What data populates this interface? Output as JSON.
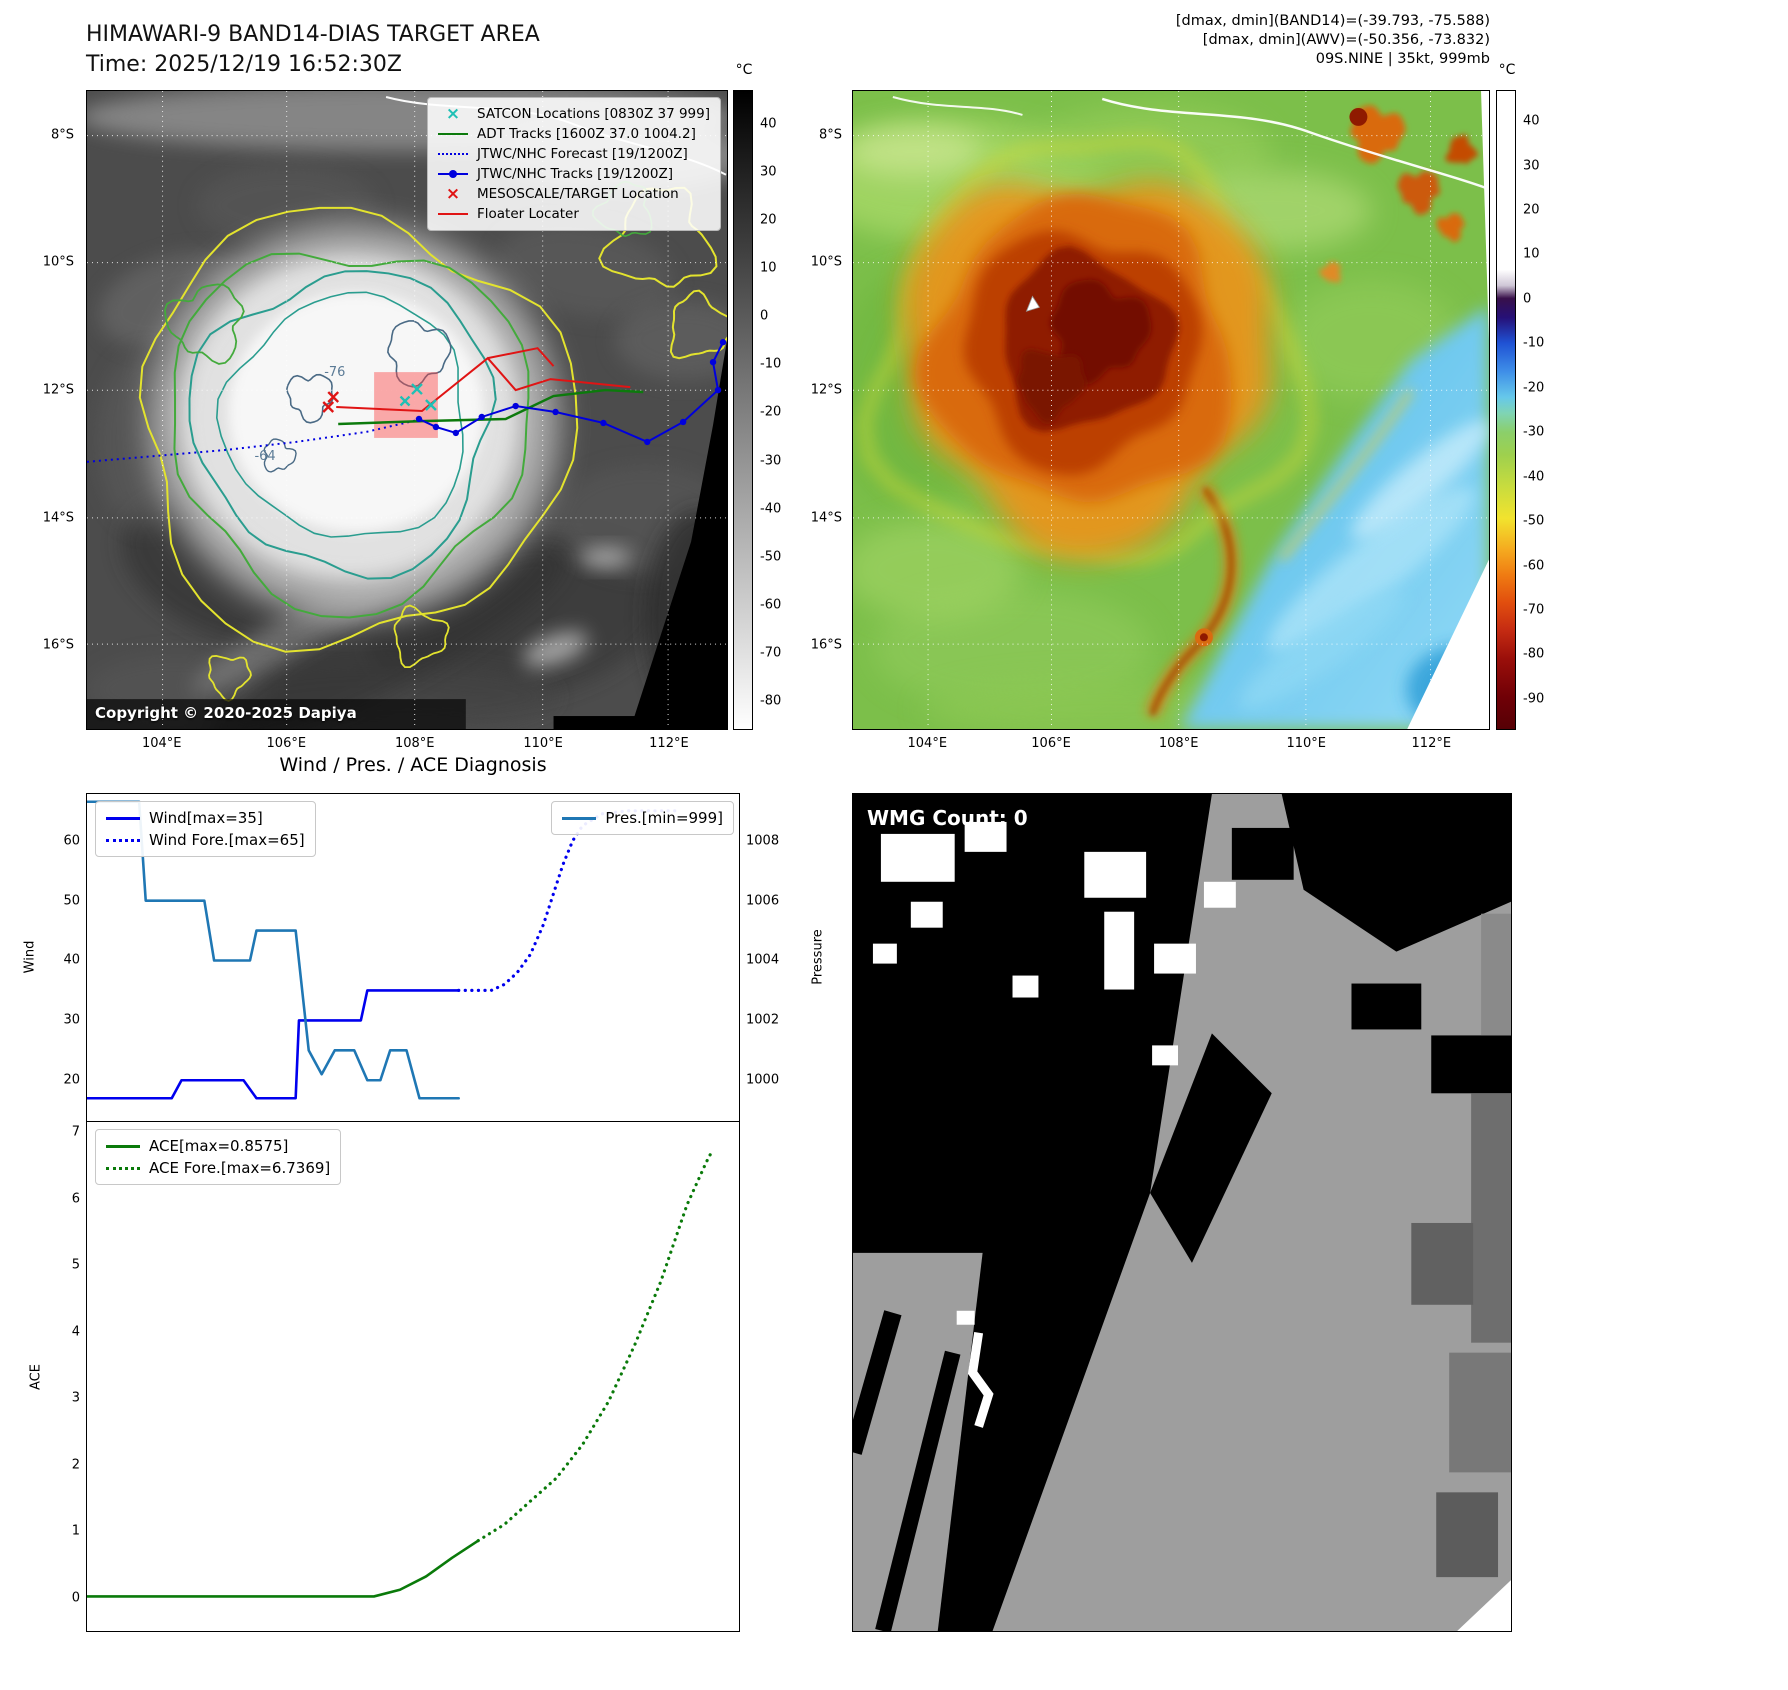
{
  "colors": {
    "wind_line": "#0000ee",
    "pressure_line": "#1f77b4",
    "ace_line": "#0a7a0a",
    "satcon_marker": "#1fc0b5",
    "adt_track": "#0c7a0c",
    "jtwc_track": "#0000dd",
    "jtwc_forecast": "#0000e0",
    "mesoscale_marker": "#e01414",
    "floater_track": "#e01414",
    "target_box": "rgba(250,70,70,0.45)",
    "contour_yellow": "#e3e32e",
    "contour_green": "#43aa3c",
    "contour_teal": "#2a9d8f",
    "contour_slate": "#4a6a85"
  },
  "band14": {
    "title": "HIMAWARI-9 BAND14-DIAS TARGET AREA",
    "time": "Time: 2025/12/19 16:52:30Z",
    "copyright": "Copyright © 2020-2025 Dapiya",
    "legend": [
      {
        "label": "SATCON Locations [0830Z 37 999]",
        "marker": "x",
        "color": "#1fc0b5"
      },
      {
        "label": "ADT Tracks [1600Z 37.0 1004.2]",
        "marker": "line",
        "color": "#0c7a0c"
      },
      {
        "label": "JTWC/NHC Forecast [19/1200Z]",
        "marker": "dotted",
        "color": "#0000e0"
      },
      {
        "label": "JTWC/NHC Tracks [19/1200Z]",
        "marker": "line-dot",
        "color": "#0000dd"
      },
      {
        "label": "MESOSCALE/TARGET Location",
        "marker": "x",
        "color": "#e01414"
      },
      {
        "label": "Floater Locater",
        "marker": "line",
        "color": "#e01414"
      }
    ],
    "contour_labels": [
      "-76",
      "-64"
    ],
    "x_ticks": [
      "104°E",
      "106°E",
      "108°E",
      "110°E",
      "112°E"
    ],
    "y_ticks": [
      "8°S",
      "10°S",
      "12°S",
      "14°S",
      "16°S"
    ],
    "colorbar": {
      "unit": "°C",
      "vmax": 47,
      "vmin": -86,
      "ticks": [
        40,
        30,
        20,
        10,
        0,
        -10,
        -20,
        -30,
        -40,
        -50,
        -60,
        -70,
        -80
      ]
    }
  },
  "awv": {
    "info_lines": [
      "[dmax, dmin](BAND14)=(-39.793, -75.588)",
      "[dmax, dmin](AWV)=(-50.356, -73.832)",
      "09S.NINE | 35kt, 999mb"
    ],
    "x_ticks": [
      "104°E",
      "106°E",
      "108°E",
      "110°E",
      "112°E"
    ],
    "y_ticks": [
      "8°S",
      "10°S",
      "12°S",
      "14°S",
      "16°S"
    ],
    "colorbar": {
      "unit": "°C",
      "vmax": 47,
      "vmin": -97,
      "ticks": [
        40,
        30,
        20,
        10,
        0,
        -10,
        -20,
        -30,
        -40,
        -50,
        -60,
        -70,
        -80,
        -90
      ]
    }
  },
  "diagnosis": {
    "title": "Wind / Pres. / ACE Diagnosis"
  },
  "wmg": {
    "count_label": "WMG Count: 0"
  },
  "chart_data": [
    {
      "type": "line",
      "title": "Wind / Pres. / ACE Diagnosis",
      "ylabel_left": "Wind",
      "ylabel_right": "Pressure",
      "xlim": [
        0,
        100
      ],
      "ylim_left": [
        13.2,
        67.8
      ],
      "ylim_right": [
        998.64,
        1009.56
      ],
      "yticks_left": [
        20,
        30,
        40,
        50,
        60
      ],
      "yticks_right": [
        1000,
        1002,
        1004,
        1006,
        1008
      ],
      "legend_left": [
        "Wind[max=35]",
        "Wind Fore.[max=65]"
      ],
      "legend_right": [
        "Pres.[min=999]"
      ],
      "grid": false,
      "series": [
        {
          "name": "Wind[max=35]",
          "axis": "left",
          "style": "solid",
          "color": "#0000ee",
          "x": [
            0,
            13,
            14.5,
            24,
            26,
            32,
            32.5,
            42,
            43,
            57
          ],
          "y": [
            17,
            17,
            20,
            20,
            17,
            17,
            30,
            30,
            35,
            35
          ]
        },
        {
          "name": "Wind Fore.[max=65]",
          "axis": "left",
          "style": "dotted",
          "color": "#0000ee",
          "x": [
            57,
            62,
            64,
            66,
            68,
            70,
            71.5,
            73,
            74.5,
            76,
            79,
            83,
            87,
            91
          ],
          "y": [
            35,
            35,
            36,
            38,
            41,
            46,
            51,
            56,
            60,
            62.5,
            64.5,
            65,
            65,
            65
          ]
        },
        {
          "name": "Pres.[min=999]",
          "axis": "right",
          "style": "solid",
          "color": "#1f77b4",
          "x": [
            0,
            8,
            9,
            18,
            19.5,
            25,
            26,
            32,
            34,
            36,
            38,
            41,
            43,
            45,
            46.5,
            49,
            51,
            57
          ],
          "y": [
            1009.3,
            1009.3,
            1006,
            1006,
            1004,
            1004,
            1005,
            1005,
            1001,
            1000.2,
            1001,
            1001,
            1000,
            1000,
            1001,
            1001,
            999.4,
            999.4
          ]
        }
      ]
    },
    {
      "type": "line",
      "title": "ACE",
      "ylabel_left": "ACE",
      "xlim": [
        0,
        100
      ],
      "ylim_left": [
        -0.5,
        7.15
      ],
      "yticks_left": [
        0,
        1,
        2,
        3,
        4,
        5,
        6,
        7
      ],
      "legend_left": [
        "ACE[max=0.8575]",
        "ACE Fore.[max=6.7369]"
      ],
      "grid": false,
      "series": [
        {
          "name": "ACE[max=0.8575]",
          "axis": "left",
          "style": "solid",
          "color": "#0a7a0a",
          "x": [
            0,
            44,
            48,
            52,
            56,
            60
          ],
          "y": [
            0.02,
            0.02,
            0.12,
            0.32,
            0.6,
            0.8575
          ]
        },
        {
          "name": "ACE Fore.[max=6.7369]",
          "axis": "left",
          "style": "dotted",
          "color": "#0a7a0a",
          "x": [
            60,
            64,
            68,
            72,
            76,
            80,
            84,
            88,
            92,
            95,
            96
          ],
          "y": [
            0.8575,
            1.1,
            1.45,
            1.8,
            2.3,
            2.95,
            3.8,
            4.75,
            5.9,
            6.55,
            6.7369
          ]
        }
      ]
    }
  ]
}
